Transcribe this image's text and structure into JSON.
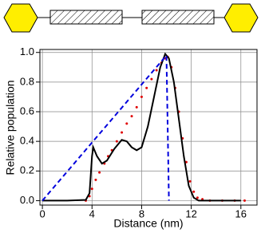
{
  "chart_data": {
    "type": "line",
    "x_label": "Distance (nm)",
    "y_label": "Relative population",
    "xlim": [
      -0.2,
      17.3
    ],
    "ylim": [
      -0.03,
      1.02
    ],
    "xticks": [
      0,
      4,
      8,
      12,
      16
    ],
    "yticks": [
      {
        "value": 0,
        "label": "0.0"
      },
      {
        "value": 0.2,
        "label": "0.2"
      },
      {
        "value": 0.4,
        "label": "0.4"
      },
      {
        "value": 0.6,
        "label": "0.6"
      },
      {
        "value": 0.8,
        "label": "0.8"
      },
      {
        "value": 1,
        "label": "1.0"
      }
    ],
    "grid": true,
    "series": [
      {
        "color": "#e00000",
        "style": "dots",
        "x": [
          3.5,
          3.8,
          4.0,
          4.3,
          4.6,
          5.0,
          5.3,
          5.6,
          6.0,
          6.4,
          6.8,
          7.2,
          7.6,
          8.0,
          8.4,
          8.8,
          9.2,
          9.6,
          9.9,
          10.1,
          10.4,
          10.7,
          11.0,
          11.3,
          11.6,
          11.9,
          12.2,
          12.5,
          12.9,
          13.5,
          14.5,
          15.5,
          16.3
        ],
        "values": [
          0.0,
          0.03,
          0.08,
          0.14,
          0.19,
          0.25,
          0.3,
          0.34,
          0.4,
          0.46,
          0.52,
          0.57,
          0.63,
          0.7,
          0.76,
          0.82,
          0.88,
          0.93,
          0.96,
          0.97,
          0.9,
          0.76,
          0.6,
          0.42,
          0.26,
          0.13,
          0.06,
          0.02,
          0.01,
          0.0,
          0.0,
          0.0,
          0.0
        ]
      },
      {
        "color": "#000000",
        "style": "solid",
        "x": [
          0,
          2,
          3.5,
          3.8,
          4.0,
          4.1,
          4.4,
          4.8,
          5.2,
          5.8,
          6.4,
          6.8,
          7.2,
          7.6,
          8.0,
          8.5,
          9.0,
          9.5,
          9.9,
          10.2,
          10.6,
          11.0,
          11.4,
          11.8,
          12.2,
          12.6,
          14,
          16
        ],
        "values": [
          0.0,
          0.0,
          0.005,
          0.05,
          0.3,
          0.36,
          0.3,
          0.25,
          0.27,
          0.35,
          0.41,
          0.4,
          0.36,
          0.34,
          0.36,
          0.5,
          0.7,
          0.9,
          0.99,
          0.96,
          0.8,
          0.55,
          0.3,
          0.1,
          0.02,
          0.0,
          0.0,
          0.0
        ]
      },
      {
        "color": "#0000dd",
        "style": "dashed",
        "x": [
          0,
          10,
          10.2
        ],
        "values": [
          0,
          0.98,
          0
        ]
      }
    ]
  }
}
